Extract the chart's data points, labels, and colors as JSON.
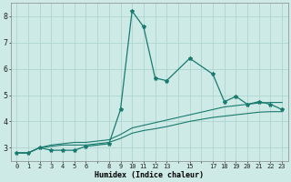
{
  "xlabel": "Humidex (Indice chaleur)",
  "background_color": "#cdeae6",
  "grid_color": "#aed4cf",
  "line_color": "#1a7a6e",
  "xlim": [
    -0.5,
    23.5
  ],
  "ylim": [
    2.5,
    8.5
  ],
  "yticks": [
    3,
    4,
    5,
    6,
    7,
    8
  ],
  "xtick_labels": [
    "0",
    "1",
    "2",
    "3",
    "4",
    "5",
    "6",
    "",
    "8",
    "9",
    "10",
    "11",
    "12",
    "13",
    "",
    "15",
    "",
    "17",
    "18",
    "19",
    "20",
    "21",
    "22",
    "23"
  ],
  "line1_x": [
    0,
    1,
    2,
    3,
    4,
    5,
    6,
    8,
    9,
    10,
    11,
    12,
    13,
    15,
    17,
    18,
    19,
    20,
    21,
    22,
    23
  ],
  "line1_y": [
    2.8,
    2.8,
    3.0,
    2.9,
    2.9,
    2.9,
    3.05,
    3.15,
    4.45,
    8.2,
    7.6,
    5.65,
    5.55,
    6.4,
    5.8,
    4.75,
    4.95,
    4.65,
    4.75,
    4.65,
    4.45
  ],
  "line2_x": [
    0,
    1,
    2,
    3,
    4,
    5,
    6,
    8,
    9,
    10,
    11,
    12,
    13,
    15,
    17,
    18,
    19,
    20,
    21,
    22,
    23
  ],
  "line2_y": [
    2.8,
    2.8,
    3.0,
    3.1,
    3.15,
    3.2,
    3.2,
    3.3,
    3.5,
    3.75,
    3.85,
    3.95,
    4.05,
    4.25,
    4.45,
    4.55,
    4.6,
    4.65,
    4.7,
    4.72,
    4.72
  ],
  "line3_x": [
    0,
    1,
    2,
    3,
    4,
    5,
    6,
    8,
    9,
    10,
    11,
    12,
    13,
    15,
    17,
    18,
    19,
    20,
    21,
    22,
    23
  ],
  "line3_y": [
    2.8,
    2.8,
    3.0,
    3.05,
    3.1,
    3.1,
    3.1,
    3.2,
    3.35,
    3.55,
    3.65,
    3.72,
    3.8,
    4.0,
    4.15,
    4.2,
    4.25,
    4.3,
    4.35,
    4.37,
    4.37
  ]
}
